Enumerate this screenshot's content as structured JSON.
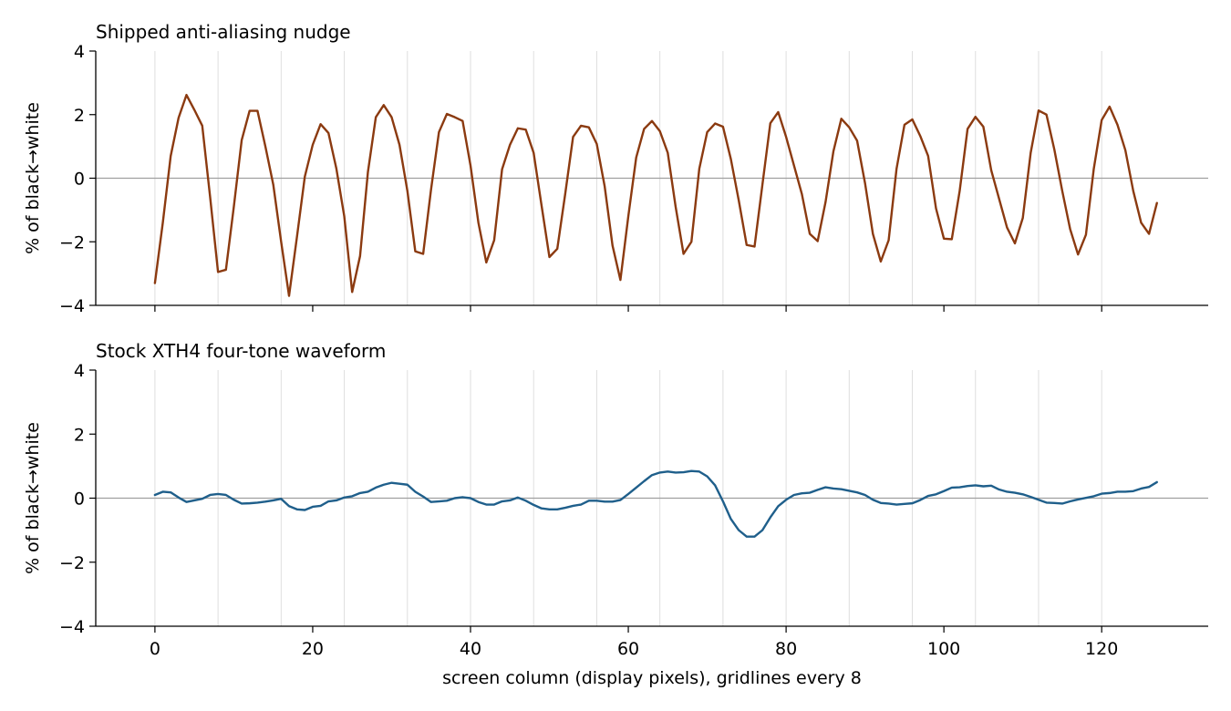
{
  "chart_data": [
    {
      "type": "line",
      "title": "Shipped anti-aliasing nudge",
      "xlabel": "",
      "ylabel": "% of black→white",
      "xlim": [
        -7.5,
        133.5
      ],
      "ylim": [
        -4,
        4
      ],
      "xticks": [
        0,
        20,
        40,
        60,
        80,
        100,
        120
      ],
      "yticks": [
        -4,
        -2,
        0,
        2,
        4
      ],
      "x_gridlines_every": 8,
      "zero_line": true,
      "grid": "vertical every 8",
      "color": "#8b3a10",
      "x_start": 0,
      "x_step": 1,
      "values": [
        -3.3,
        -1.4,
        0.7,
        1.9,
        2.62,
        2.15,
        1.65,
        -0.6,
        -2.95,
        -2.88,
        -0.9,
        1.2,
        2.12,
        2.12,
        1.0,
        -0.2,
        -2.0,
        -3.7,
        -1.85,
        0.05,
        1.05,
        1.7,
        1.42,
        0.3,
        -1.2,
        -3.58,
        -2.45,
        0.2,
        1.92,
        2.3,
        1.92,
        1.05,
        -0.4,
        -2.3,
        -2.38,
        -0.35,
        1.45,
        2.02,
        1.92,
        1.8,
        0.4,
        -1.4,
        -2.65,
        -1.95,
        0.28,
        1.05,
        1.57,
        1.53,
        0.8,
        -0.85,
        -2.48,
        -2.22,
        -0.5,
        1.3,
        1.65,
        1.6,
        1.08,
        -0.25,
        -2.12,
        -3.2,
        -1.2,
        0.65,
        1.55,
        1.8,
        1.48,
        0.8,
        -0.9,
        -2.38,
        -2.0,
        0.3,
        1.45,
        1.72,
        1.62,
        0.6,
        -0.7,
        -2.1,
        -2.15,
        -0.2,
        1.73,
        2.08,
        1.3,
        0.4,
        -0.5,
        -1.75,
        -1.98,
        -0.75,
        0.85,
        1.87,
        1.6,
        1.18,
        -0.15,
        -1.75,
        -2.62,
        -1.95,
        0.3,
        1.68,
        1.85,
        1.33,
        0.7,
        -0.95,
        -1.9,
        -1.92,
        -0.4,
        1.55,
        1.93,
        1.62,
        0.25,
        -0.65,
        -1.55,
        -2.05,
        -1.25,
        0.8,
        2.13,
        2.0,
        0.9,
        -0.4,
        -1.6,
        -2.4,
        -1.78,
        0.3,
        1.83,
        2.25,
        1.68,
        0.88,
        -0.4,
        -1.4,
        -1.75,
        -0.78
      ]
    },
    {
      "type": "line",
      "title": "Stock XTH4 four-tone waveform",
      "xlabel": "screen column (display pixels), gridlines every 8",
      "ylabel": "% of black→white",
      "xlim": [
        -7.5,
        133.5
      ],
      "ylim": [
        -4,
        4
      ],
      "xticks": [
        0,
        20,
        40,
        60,
        80,
        100,
        120
      ],
      "yticks": [
        -4,
        -2,
        0,
        2,
        4
      ],
      "x_gridlines_every": 8,
      "zero_line": true,
      "grid": "vertical every 8",
      "color": "#1f5f8b",
      "x_start": 0,
      "x_step": 1,
      "values": [
        0.1,
        0.2,
        0.18,
        0.02,
        -0.12,
        -0.07,
        -0.02,
        0.1,
        0.13,
        0.1,
        -0.05,
        -0.17,
        -0.16,
        -0.14,
        -0.11,
        -0.07,
        -0.02,
        -0.25,
        -0.35,
        -0.37,
        -0.27,
        -0.24,
        -0.1,
        -0.07,
        0.02,
        0.06,
        0.16,
        0.2,
        0.33,
        0.42,
        0.48,
        0.45,
        0.42,
        0.2,
        0.05,
        -0.12,
        -0.1,
        -0.08,
        0.0,
        0.03,
        0.0,
        -0.12,
        -0.2,
        -0.2,
        -0.1,
        -0.07,
        0.02,
        -0.08,
        -0.21,
        -0.32,
        -0.35,
        -0.35,
        -0.3,
        -0.24,
        -0.2,
        -0.08,
        -0.08,
        -0.11,
        -0.11,
        -0.06,
        0.13,
        0.33,
        0.53,
        0.72,
        0.8,
        0.83,
        0.8,
        0.81,
        0.85,
        0.83,
        0.68,
        0.4,
        -0.1,
        -0.65,
        -1.0,
        -1.2,
        -1.2,
        -1.0,
        -0.6,
        -0.25,
        -0.05,
        0.1,
        0.15,
        0.17,
        0.26,
        0.34,
        0.3,
        0.28,
        0.23,
        0.18,
        0.1,
        -0.05,
        -0.15,
        -0.17,
        -0.2,
        -0.18,
        -0.16,
        -0.06,
        0.07,
        0.12,
        0.22,
        0.33,
        0.34,
        0.38,
        0.4,
        0.37,
        0.39,
        0.27,
        0.2,
        0.17,
        0.12,
        0.04,
        -0.05,
        -0.14,
        -0.15,
        -0.17,
        -0.1,
        -0.04,
        0.01,
        0.06,
        0.14,
        0.16,
        0.2,
        0.2,
        0.22,
        0.3,
        0.35,
        0.5
      ]
    }
  ]
}
